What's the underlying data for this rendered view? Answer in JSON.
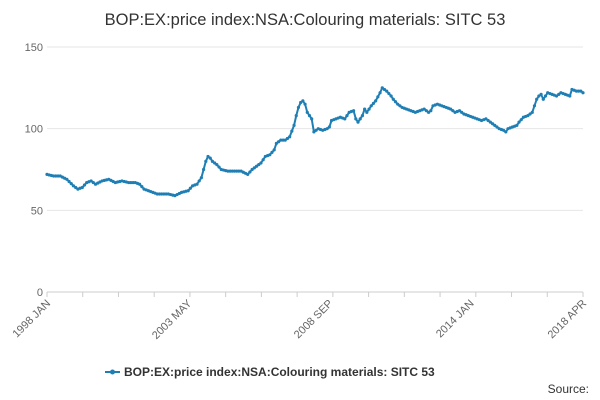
{
  "chart_data": {
    "type": "line",
    "title": "BOP:EX:price index:NSA:Colouring materials: SITC 53",
    "xlabel": "",
    "ylabel": "",
    "ylim": [
      0,
      150
    ],
    "yticks": [
      0,
      50,
      100,
      150
    ],
    "x_tick_labels": [
      "1998 JAN",
      "2003 MAY",
      "2008 SEP",
      "2014 JAN",
      "2018 APR"
    ],
    "x_tick_indices": [
      0,
      64,
      128,
      192,
      243
    ],
    "grid": true,
    "legend_position": "bottom",
    "series": [
      {
        "name": "BOP:EX:price index:NSA:Colouring materials: SITC 53",
        "color": "#1f7fb4",
        "anchors": [
          [
            0,
            72
          ],
          [
            3,
            71
          ],
          [
            6,
            71
          ],
          [
            9,
            69
          ],
          [
            12,
            65
          ],
          [
            14,
            63
          ],
          [
            16,
            64
          ],
          [
            18,
            67
          ],
          [
            20,
            68
          ],
          [
            22,
            66
          ],
          [
            25,
            68
          ],
          [
            28,
            69
          ],
          [
            31,
            67
          ],
          [
            34,
            68
          ],
          [
            37,
            67
          ],
          [
            40,
            67
          ],
          [
            42,
            66
          ],
          [
            44,
            63
          ],
          [
            46,
            62
          ],
          [
            48,
            61
          ],
          [
            50,
            60
          ],
          [
            52,
            60
          ],
          [
            55,
            60
          ],
          [
            58,
            59
          ],
          [
            61,
            61
          ],
          [
            64,
            62
          ],
          [
            66,
            65
          ],
          [
            68,
            66
          ],
          [
            70,
            70
          ],
          [
            71,
            75
          ],
          [
            72,
            80
          ],
          [
            73,
            83
          ],
          [
            74,
            82
          ],
          [
            75,
            80
          ],
          [
            77,
            78
          ],
          [
            79,
            75
          ],
          [
            82,
            74
          ],
          [
            85,
            74
          ],
          [
            88,
            74
          ],
          [
            91,
            72
          ],
          [
            93,
            75
          ],
          [
            95,
            77
          ],
          [
            97,
            79
          ],
          [
            99,
            83
          ],
          [
            101,
            84
          ],
          [
            103,
            87
          ],
          [
            104,
            91
          ],
          [
            106,
            93
          ],
          [
            108,
            93
          ],
          [
            110,
            95
          ],
          [
            112,
            102
          ],
          [
            113,
            108
          ],
          [
            114,
            113
          ],
          [
            115,
            116
          ],
          [
            116,
            117
          ],
          [
            117,
            115
          ],
          [
            118,
            110
          ],
          [
            120,
            106
          ],
          [
            121,
            98
          ],
          [
            123,
            100
          ],
          [
            125,
            99
          ],
          [
            127,
            100
          ],
          [
            128,
            101
          ],
          [
            129,
            105
          ],
          [
            131,
            106
          ],
          [
            133,
            107
          ],
          [
            135,
            106
          ],
          [
            137,
            110
          ],
          [
            139,
            111
          ],
          [
            140,
            106
          ],
          [
            141,
            104
          ],
          [
            143,
            108
          ],
          [
            144,
            112
          ],
          [
            145,
            110
          ],
          [
            147,
            114
          ],
          [
            149,
            117
          ],
          [
            151,
            122
          ],
          [
            152,
            125
          ],
          [
            154,
            123
          ],
          [
            156,
            120
          ],
          [
            157,
            118
          ],
          [
            159,
            115
          ],
          [
            161,
            113
          ],
          [
            163,
            112
          ],
          [
            165,
            111
          ],
          [
            167,
            110
          ],
          [
            169,
            111
          ],
          [
            171,
            112
          ],
          [
            173,
            110
          ],
          [
            174,
            111
          ],
          [
            175,
            114
          ],
          [
            177,
            115
          ],
          [
            179,
            114
          ],
          [
            181,
            113
          ],
          [
            183,
            112
          ],
          [
            185,
            110
          ],
          [
            187,
            111
          ],
          [
            189,
            109
          ],
          [
            191,
            108
          ],
          [
            193,
            107
          ],
          [
            195,
            106
          ],
          [
            197,
            105
          ],
          [
            199,
            106
          ],
          [
            201,
            104
          ],
          [
            203,
            102
          ],
          [
            205,
            100
          ],
          [
            207,
            99
          ],
          [
            208,
            98
          ],
          [
            209,
            100
          ],
          [
            211,
            101
          ],
          [
            213,
            102
          ],
          [
            214,
            104
          ],
          [
            216,
            107
          ],
          [
            218,
            108
          ],
          [
            220,
            110
          ],
          [
            221,
            114
          ],
          [
            222,
            118
          ],
          [
            223,
            120
          ],
          [
            224,
            121
          ],
          [
            225,
            118
          ],
          [
            226,
            120
          ],
          [
            227,
            122
          ],
          [
            229,
            121
          ],
          [
            231,
            120
          ],
          [
            233,
            122
          ],
          [
            235,
            121
          ],
          [
            237,
            120
          ],
          [
            238,
            124
          ],
          [
            240,
            123
          ],
          [
            242,
            123
          ],
          [
            243,
            122
          ]
        ]
      }
    ]
  },
  "legend": {
    "label": "BOP:EX:price index:NSA:Colouring materials: SITC 53"
  },
  "footer": {
    "source_label": "Source:"
  }
}
